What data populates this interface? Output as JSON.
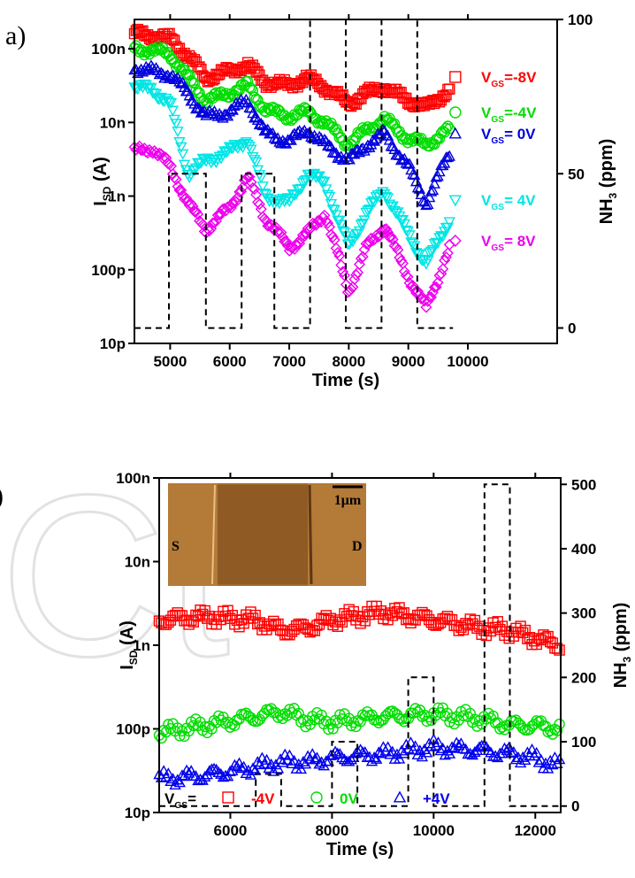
{
  "chart_data": [
    {
      "panel": "a)",
      "type": "scatter",
      "xlabel": "Time (s)",
      "ylabel_main": "I",
      "ylabel_sub": "SD",
      "ylabel_unit": "(A)",
      "y2label_main": "NH",
      "y2label_sub": "3",
      "y2label_unit": "(ppm)",
      "xlim": [
        4400,
        11500
      ],
      "ylim_log": [
        1e-11,
        2.5e-07
      ],
      "y2lim": [
        -5,
        100
      ],
      "y_scale": "log",
      "x_ticks": [
        5000,
        6000,
        7000,
        8000,
        9000,
        10000
      ],
      "x_tick_labels": [
        "5000",
        "6000",
        "7000",
        "8000",
        "9000",
        "10000"
      ],
      "y_ticks": [
        1e-11,
        1e-10,
        1e-09,
        1e-08,
        1e-07
      ],
      "y_tick_labels": [
        "10p",
        "100p",
        "1n",
        "10n",
        "100n"
      ],
      "y2_ticks": [
        0,
        50,
        100
      ],
      "y2_tick_labels": [
        "0",
        "50",
        "100"
      ],
      "series": [
        {
          "name_main": "V",
          "name_sub": "GS",
          "name_val": "=-8V",
          "color": "#ff0000",
          "marker": "square",
          "x": [
            4400,
            4700,
            5000,
            5300,
            5600,
            6000,
            6300,
            6600,
            7000,
            7300,
            7600,
            8000,
            8300,
            8600,
            9000,
            9300,
            9700
          ],
          "y": [
            1.6e-07,
            1.5e-07,
            1.4e-07,
            8e-08,
            4e-08,
            5e-08,
            6e-08,
            3.5e-08,
            3.2e-08,
            4e-08,
            3e-08,
            1.8e-08,
            2.5e-08,
            3e-08,
            2e-08,
            1.6e-08,
            2.8e-08
          ]
        },
        {
          "name_main": "V",
          "name_sub": "GS",
          "name_val": "=-4V",
          "color": "#00dd00",
          "marker": "circle",
          "x": [
            4400,
            4700,
            5000,
            5300,
            5600,
            6000,
            6300,
            6600,
            7000,
            7300,
            7600,
            8000,
            8300,
            8600,
            9000,
            9300,
            9700
          ],
          "y": [
            1e-07,
            9.5e-08,
            8.5e-08,
            4e-08,
            2e-08,
            2.5e-08,
            3.2e-08,
            1.5e-08,
            1.2e-08,
            1.4e-08,
            1e-08,
            5e-09,
            8e-09,
            1.1e-08,
            6e-09,
            5e-09,
            8e-09
          ]
        },
        {
          "name_main": "V",
          "name_sub": "GS",
          "name_val": "= 0V",
          "color": "#0000dd",
          "marker": "triangle",
          "x": [
            4400,
            4700,
            5000,
            5300,
            5600,
            6000,
            6300,
            6600,
            7000,
            7300,
            7600,
            8000,
            8300,
            8600,
            9000,
            9300,
            9700
          ],
          "y": [
            5.5e-08,
            5e-08,
            4.5e-08,
            2.5e-08,
            1.2e-08,
            1.4e-08,
            2e-08,
            7e-09,
            5.5e-09,
            8e-09,
            5e-09,
            3e-09,
            5e-09,
            7e-09,
            2.5e-09,
            8e-10,
            4e-09
          ]
        },
        {
          "name_main": "V",
          "name_sub": "GS",
          "name_val": "= 4V",
          "color": "#00e5e5",
          "marker": "triangle-down",
          "x": [
            4400,
            4700,
            5000,
            5300,
            5600,
            6000,
            6300,
            6600,
            7000,
            7300,
            7600,
            8000,
            8300,
            8600,
            9000,
            9300,
            9700
          ],
          "y": [
            3e-08,
            2.8e-08,
            1.8e-08,
            2e-09,
            3e-09,
            4e-09,
            6e-09,
            1e-09,
            8e-10,
            2e-09,
            1.5e-09,
            2e-10,
            6e-10,
            1.2e-09,
            3e-10,
            1.2e-10,
            5e-10
          ]
        },
        {
          "name_main": "V",
          "name_sub": "GS",
          "name_val": "= 8V",
          "color": "#ee00ee",
          "marker": "diamond",
          "x": [
            4400,
            4700,
            5000,
            5300,
            5600,
            6000,
            6300,
            6600,
            7000,
            7300,
            7600,
            8000,
            8300,
            8600,
            9000,
            9300,
            9700
          ],
          "y": [
            4e-09,
            4.5e-09,
            2.5e-09,
            8e-10,
            3.5e-10,
            7e-10,
            1.8e-09,
            5e-10,
            2e-10,
            3e-10,
            6e-10,
            5e-11,
            2e-10,
            4e-10,
            8e-11,
            3e-11,
            2e-10
          ]
        }
      ],
      "nh3_steps": {
        "x": [
          4400,
          4980,
          4980,
          5600,
          5600,
          6200,
          6200,
          6750,
          6750,
          7350,
          7350,
          7950,
          7950,
          8550,
          8550,
          9150,
          9150,
          9750
        ],
        "y": [
          0,
          0,
          50,
          50,
          0,
          0,
          50,
          50,
          0,
          0,
          100,
          100,
          0,
          0,
          100,
          100,
          0,
          0
        ]
      }
    },
    {
      "panel": ")",
      "type": "scatter",
      "xlabel": "Time (s)",
      "ylabel_main": "I",
      "ylabel_sub": "SD",
      "ylabel_unit": "(A)",
      "y2label_main": "NH",
      "y2label_sub": "3",
      "y2label_unit": "(ppm)",
      "xlim": [
        4600,
        12500
      ],
      "ylim_log": [
        1e-11,
        1e-07
      ],
      "y2lim": [
        -10,
        510
      ],
      "y_scale": "log",
      "x_ticks": [
        6000,
        8000,
        10000,
        12000
      ],
      "x_tick_labels": [
        "6000",
        "8000",
        "10000",
        "12000"
      ],
      "y_ticks": [
        1e-11,
        1e-10,
        1e-09,
        1e-08,
        1e-07
      ],
      "y_tick_labels": [
        "10p",
        "100p",
        "1n",
        "10n",
        "100n"
      ],
      "y2_ticks": [
        0,
        100,
        200,
        300,
        400,
        500
      ],
      "y2_tick_labels": [
        "0",
        "100",
        "200",
        "300",
        "400",
        "500"
      ],
      "legend_prefix_main": "V",
      "legend_prefix_sub": "GS",
      "legend_prefix_eq": "=",
      "series": [
        {
          "name": "-4V",
          "color": "#ff0000",
          "marker": "square",
          "x": [
            4600,
            5500,
            6500,
            7000,
            7500,
            8000,
            9000,
            10000,
            11000,
            11500,
            12000,
            12500
          ],
          "y": [
            2e-09,
            2.2e-09,
            2e-09,
            1.5e-09,
            1.6e-09,
            2e-09,
            2.5e-09,
            2e-09,
            1.6e-09,
            1.5e-09,
            1.2e-09,
            1e-09
          ]
        },
        {
          "name": "0V",
          "color": "#00dd00",
          "marker": "circle",
          "x": [
            4600,
            5500,
            6500,
            7000,
            7500,
            8000,
            9000,
            10000,
            11000,
            11500,
            12000,
            12500
          ],
          "y": [
            9e-11,
            1.1e-10,
            1.4e-10,
            1.6e-10,
            1.3e-10,
            1.2e-10,
            1.4e-10,
            1.5e-10,
            1.3e-10,
            1.1e-10,
            1.1e-10,
            1e-10
          ]
        },
        {
          "name": "+4V",
          "color": "#0000ee",
          "marker": "triangle",
          "x": [
            4600,
            5500,
            6500,
            7000,
            7500,
            8000,
            9000,
            10000,
            11000,
            11500,
            12000,
            12500
          ],
          "y": [
            2.5e-11,
            2.8e-11,
            3.5e-11,
            4e-11,
            4e-11,
            4.5e-11,
            5e-11,
            6e-11,
            5.5e-11,
            5e-11,
            4.5e-11,
            3.5e-11
          ]
        }
      ],
      "nh3_steps": {
        "x": [
          4600,
          6500,
          6500,
          7000,
          7000,
          8000,
          8000,
          8500,
          8500,
          9500,
          9500,
          10000,
          10000,
          11000,
          11000,
          11500,
          11500,
          12500
        ],
        "y": [
          0,
          0,
          50,
          50,
          0,
          0,
          100,
          100,
          0,
          0,
          200,
          200,
          0,
          0,
          500,
          500,
          0,
          0
        ]
      },
      "inset": {
        "label_left": "S",
        "label_right": "D",
        "scale_label": "1μm"
      }
    }
  ]
}
